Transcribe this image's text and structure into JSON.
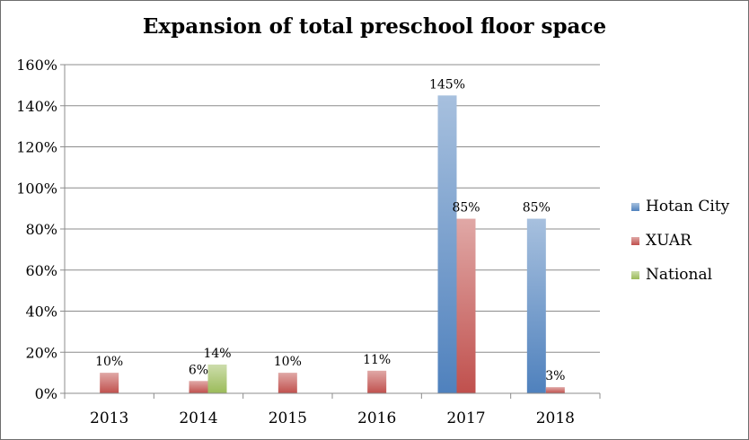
{
  "chart_data": {
    "type": "bar",
    "title": "Expansion of total preschool floor space",
    "xlabel": "",
    "ylabel": "",
    "categories": [
      "2013",
      "2014",
      "2015",
      "2016",
      "2017",
      "2018"
    ],
    "series": [
      {
        "name": "Hotan City",
        "color": "#4f81bd",
        "values": [
          null,
          null,
          null,
          null,
          1.45,
          0.85
        ],
        "labels": [
          null,
          null,
          null,
          null,
          "145%",
          "85%"
        ]
      },
      {
        "name": "XUAR",
        "color": "#c0504d",
        "values": [
          0.1,
          0.06,
          0.1,
          0.11,
          0.85,
          0.03
        ],
        "labels": [
          "10%",
          "6%",
          "10%",
          "11%",
          "85%",
          "3%"
        ]
      },
      {
        "name": "National",
        "color": "#9bbb59",
        "values": [
          null,
          0.14,
          null,
          null,
          null,
          null
        ],
        "labels": [
          null,
          "14%",
          null,
          null,
          null,
          null
        ]
      }
    ],
    "ylim": [
      0,
      1.6
    ],
    "yticks": [
      0,
      0.2,
      0.4,
      0.6,
      0.8,
      1.0,
      1.2,
      1.4,
      1.6
    ],
    "ytick_labels": [
      "0%",
      "20%",
      "40%",
      "60%",
      "80%",
      "100%",
      "120%",
      "140%",
      "160%"
    ],
    "grid": true,
    "legend": "right"
  }
}
